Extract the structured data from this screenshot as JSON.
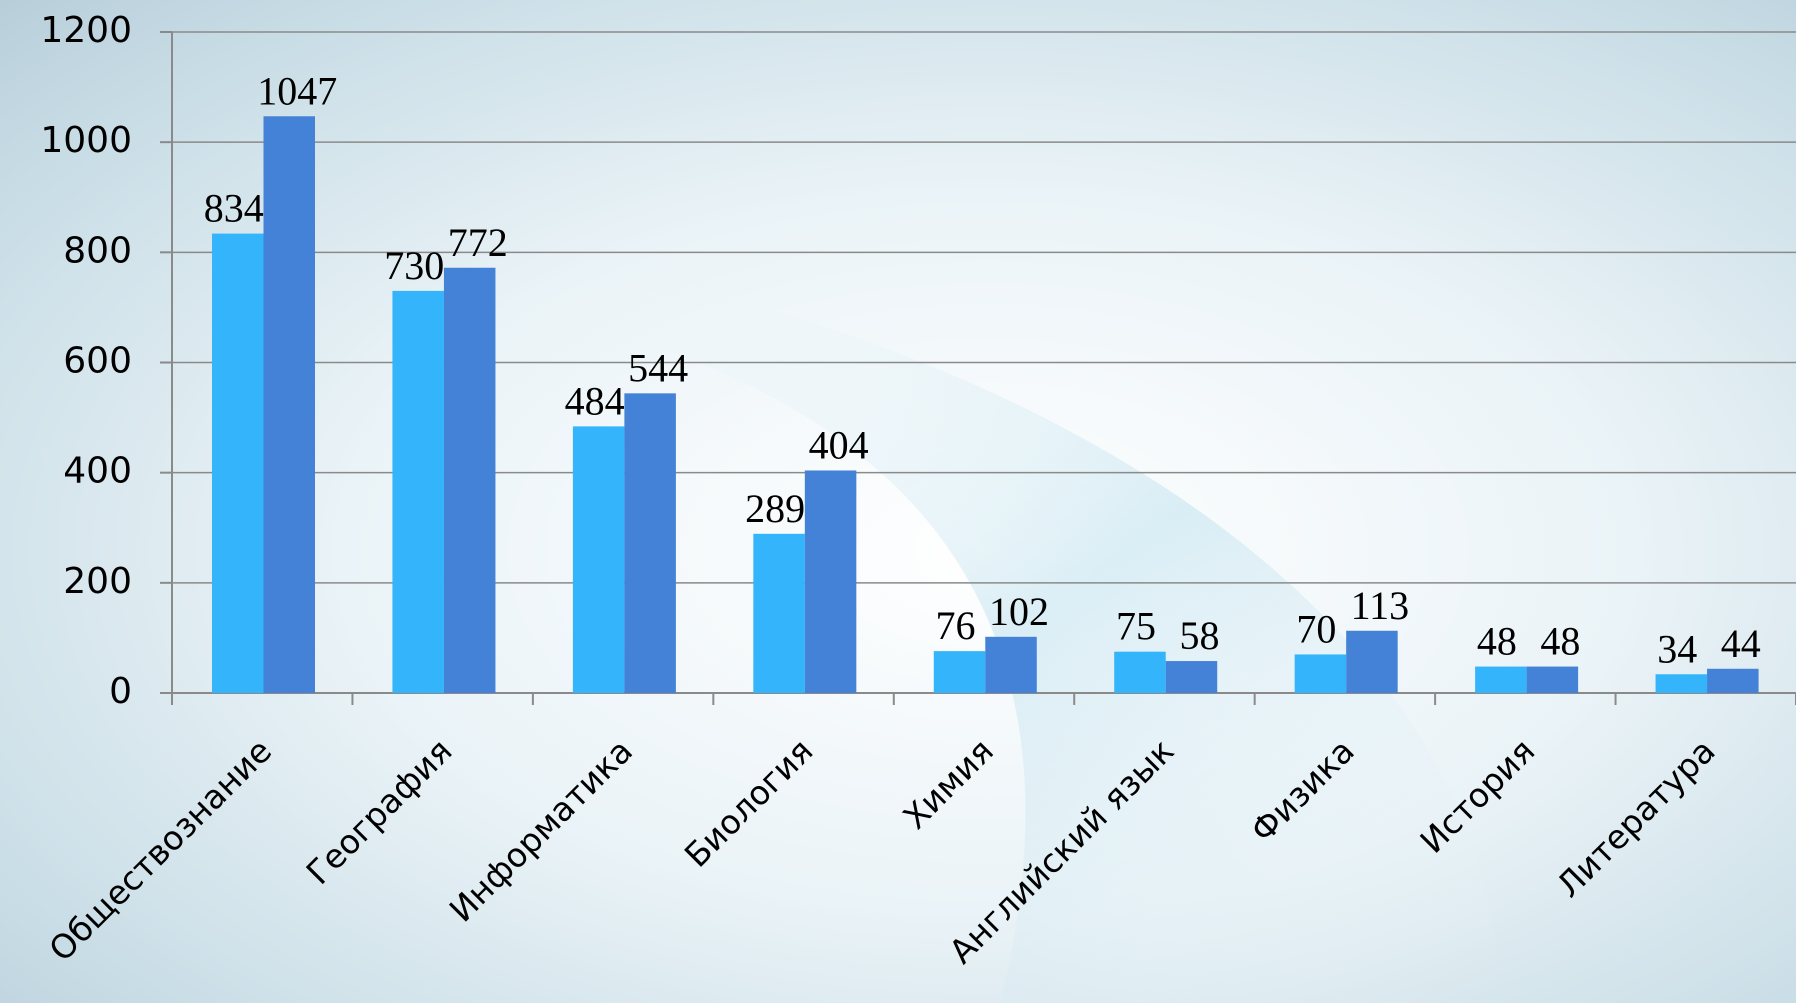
{
  "chart_data": {
    "type": "bar",
    "categories": [
      "Обществознание",
      "География",
      "Информатика",
      "Биология",
      "Химия",
      "Английский язык",
      "Физика",
      "История",
      "Литература"
    ],
    "series": [
      {
        "color": "#33b4fb",
        "values": [
          834,
          730,
          484,
          289,
          76,
          75,
          70,
          48,
          34
        ]
      },
      {
        "color": "#4382d6",
        "values": [
          1047,
          772,
          544,
          404,
          102,
          58,
          113,
          48,
          44
        ]
      }
    ],
    "ylim": [
      0,
      1200
    ],
    "yticks": [
      0,
      200,
      400,
      600,
      800,
      1000,
      1200
    ],
    "grid": true
  }
}
